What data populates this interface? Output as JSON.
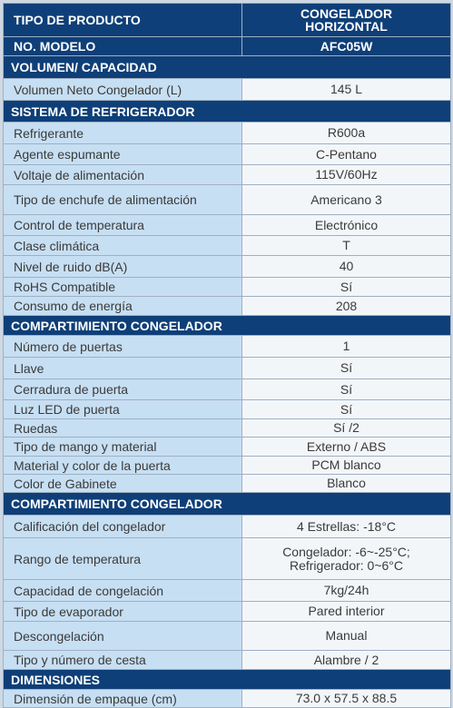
{
  "header": {
    "type_label": "TIPO DE PRODUCTO",
    "type_value": "CONGELADOR HORIZONTAL",
    "model_label": "NO. MODELO",
    "model_value": "AFC05W"
  },
  "sections": [
    {
      "title": "VOLUMEN/ CAPACIDAD",
      "rows": [
        {
          "label": "Volumen Neto Congelador (L)",
          "value": "145 L"
        }
      ]
    },
    {
      "title": "SISTEMA DE REFRIGERADOR",
      "rows": [
        {
          "label": "Refrigerante",
          "value": "R600a"
        },
        {
          "label": "Agente espumante",
          "value": "C-Pentano"
        },
        {
          "label": "Voltaje de alimentación",
          "value": "115V/60Hz"
        },
        {
          "label": "Tipo de enchufe de alimentación",
          "value": "Americano 3"
        },
        {
          "label": "Control de temperatura",
          "value": "Electrónico"
        },
        {
          "label": "Clase climática",
          "value": "T"
        },
        {
          "label": "Nivel de ruido dB(A)",
          "value": "40"
        },
        {
          "label": "RoHS Compatible",
          "value": "Sí"
        },
        {
          "label": "Consumo de energía",
          "value": "208"
        }
      ]
    },
    {
      "title": "COMPARTIMIENTO CONGELADOR",
      "rows": [
        {
          "label": "Número de puertas",
          "value": "1"
        },
        {
          "label": "Llave",
          "value": "Sí"
        },
        {
          "label": "Cerradura de puerta",
          "value": "Sí"
        },
        {
          "label": "Luz LED de puerta",
          "value": "Sí"
        },
        {
          "label": "Ruedas",
          "value": "Sí /2"
        },
        {
          "label": "Tipo de mango y material",
          "value": "Externo / ABS"
        },
        {
          "label": "Material y color de la puerta",
          "value": "PCM blanco"
        },
        {
          "label": "Color de Gabinete",
          "value": "Blanco"
        }
      ]
    },
    {
      "title": "COMPARTIMIENTO CONGELADOR",
      "rows": [
        {
          "label": "Calificación del congelador",
          "value": "4 Estrellas: -18°C"
        },
        {
          "label": "Rango de temperatura",
          "value": "Congelador: -6~-25°C;",
          "value2": "Refrigerador: 0~6°C"
        },
        {
          "label": "Capacidad de congelación",
          "value": "7kg/24h"
        },
        {
          "label": "Tipo de evaporador",
          "value": "Pared interior"
        },
        {
          "label": "Descongelación",
          "value": "Manual"
        },
        {
          "label": "Tipo y número de cesta",
          "value": "Alambre / 2"
        }
      ]
    },
    {
      "title": "DIMENSIONES",
      "rows": [
        {
          "label": "Dimensión de empaque (cm)",
          "value": "73.0 x 57.5 x 88.5"
        }
      ]
    }
  ]
}
